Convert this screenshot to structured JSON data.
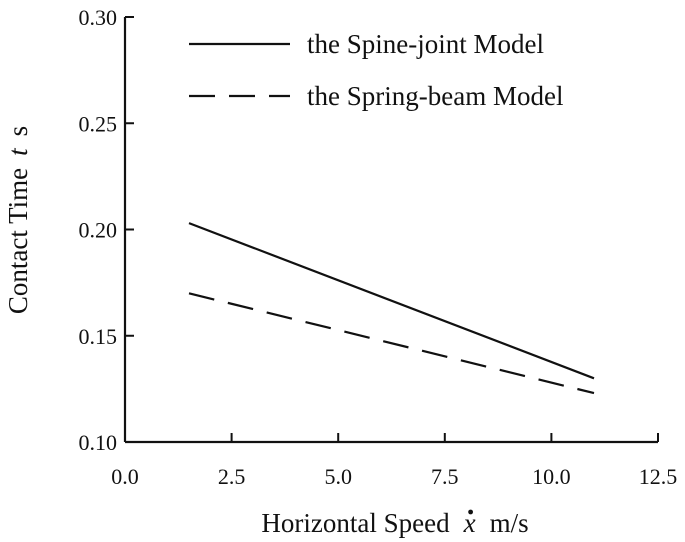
{
  "chart_data": {
    "type": "line",
    "xlabel": {
      "prefix": "Horizontal Speed",
      "symbol": "x",
      "unit": "m/s"
    },
    "ylabel": {
      "prefix": "Contact Time",
      "symbol": "t",
      "unit": "s"
    },
    "xlim": [
      0,
      12.5
    ],
    "ylim": [
      0.1,
      0.3
    ],
    "xticks": [
      "0.0",
      "2.5",
      "5.0",
      "7.5",
      "10.0",
      "12.5"
    ],
    "yticks": [
      "0.10",
      "0.15",
      "0.20",
      "0.25",
      "0.30"
    ],
    "grid": false,
    "legend_position": "top-right",
    "series": [
      {
        "name": "the Spine-joint Model",
        "style": "solid",
        "x": [
          1.5,
          11.0
        ],
        "y": [
          0.203,
          0.13
        ]
      },
      {
        "name": "the Spring-beam Model",
        "style": "dashed",
        "x": [
          1.5,
          11.0
        ],
        "y": [
          0.17,
          0.123
        ]
      }
    ]
  }
}
